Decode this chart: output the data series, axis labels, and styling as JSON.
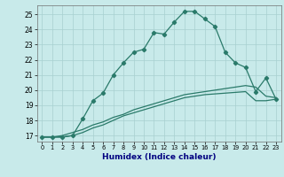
{
  "xlabel": "Humidex (Indice chaleur)",
  "ylabel": "",
  "bg_color": "#c8eaea",
  "line_color": "#2a7a6a",
  "grid_color": "#a8d0d0",
  "label_color": "#000080",
  "xlim": [
    -0.5,
    23.5
  ],
  "ylim": [
    16.6,
    25.6
  ],
  "yticks": [
    17,
    18,
    19,
    20,
    21,
    22,
    23,
    24,
    25
  ],
  "xticks": [
    0,
    1,
    2,
    3,
    4,
    5,
    6,
    7,
    8,
    9,
    10,
    11,
    12,
    13,
    14,
    15,
    16,
    17,
    18,
    19,
    20,
    21,
    22,
    23
  ],
  "series1_x": [
    0,
    1,
    2,
    3,
    4,
    5,
    6,
    7,
    8,
    9,
    10,
    11,
    12,
    13,
    14,
    15,
    16,
    17,
    18,
    19,
    20,
    21,
    22,
    23
  ],
  "series1_y": [
    16.9,
    16.9,
    16.9,
    17.0,
    18.1,
    19.3,
    19.8,
    21.0,
    21.8,
    22.5,
    22.7,
    23.8,
    23.7,
    24.5,
    25.2,
    25.2,
    24.7,
    24.2,
    22.5,
    21.8,
    21.5,
    19.9,
    20.8,
    19.4
  ],
  "series2_x": [
    0,
    1,
    2,
    3,
    4,
    5,
    6,
    7,
    8,
    9,
    10,
    11,
    12,
    13,
    14,
    15,
    16,
    17,
    18,
    19,
    20,
    21,
    22,
    23
  ],
  "series2_y": [
    16.9,
    16.9,
    16.9,
    17.0,
    17.2,
    17.5,
    17.7,
    18.0,
    18.3,
    18.5,
    18.7,
    18.9,
    19.1,
    19.3,
    19.5,
    19.6,
    19.7,
    19.75,
    19.8,
    19.85,
    19.9,
    19.3,
    19.3,
    19.4
  ],
  "series3_x": [
    0,
    1,
    2,
    3,
    4,
    5,
    6,
    7,
    8,
    9,
    10,
    11,
    12,
    13,
    14,
    15,
    16,
    17,
    18,
    19,
    20,
    21,
    22,
    23
  ],
  "series3_y": [
    16.9,
    16.9,
    17.0,
    17.2,
    17.4,
    17.7,
    17.9,
    18.2,
    18.4,
    18.7,
    18.9,
    19.1,
    19.3,
    19.5,
    19.7,
    19.8,
    19.9,
    20.0,
    20.1,
    20.2,
    20.3,
    20.2,
    19.6,
    19.5
  ]
}
